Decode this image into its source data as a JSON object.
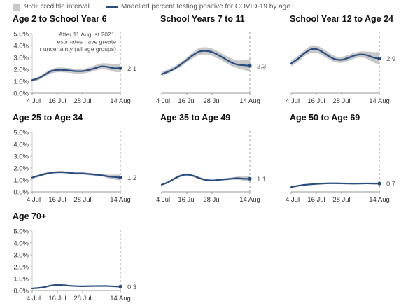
{
  "legend": {
    "ci_label": "95% credible interval",
    "line_label": "Modelled percent testing positive for COVID-19 by age",
    "ci_color": "#c8c8c8",
    "line_color": "#2a4d7f"
  },
  "annotation": "After 11 August 2021, estimates have greater uncertainty (all age groups)",
  "chart_data": [
    {
      "type": "line",
      "title": "Age 2 to School Year 6",
      "x": [
        "4 Jul",
        "7 Jul",
        "10 Jul",
        "13 Jul",
        "16 Jul",
        "19 Jul",
        "22 Jul",
        "25 Jul",
        "28 Jul",
        "31 Jul",
        "3 Aug",
        "6 Aug",
        "9 Aug",
        "12 Aug",
        "14 Aug"
      ],
      "x_ticks": [
        "4 Jul",
        "16 Jul",
        "28 Jul",
        "14 Aug"
      ],
      "y_ticks": [
        "0.0%",
        "1.0%",
        "2.0%",
        "3.0%",
        "4.0%",
        "5.0%"
      ],
      "ylim": [
        0,
        5
      ],
      "values": [
        1.1,
        1.25,
        1.55,
        1.85,
        1.95,
        1.95,
        1.9,
        1.85,
        1.85,
        1.95,
        2.1,
        2.25,
        2.2,
        2.1,
        2.1
      ],
      "lower": [
        1.0,
        1.1,
        1.4,
        1.65,
        1.75,
        1.75,
        1.7,
        1.65,
        1.65,
        1.75,
        1.9,
        2.0,
        1.95,
        1.8,
        1.75
      ],
      "upper": [
        1.25,
        1.4,
        1.7,
        2.0,
        2.15,
        2.15,
        2.1,
        2.05,
        2.05,
        2.15,
        2.35,
        2.5,
        2.5,
        2.45,
        2.5
      ],
      "last_value": "2.1",
      "gridlines": false
    },
    {
      "type": "line",
      "title": "School Years 7 to 11",
      "x": [
        "4 Jul",
        "7 Jul",
        "10 Jul",
        "13 Jul",
        "16 Jul",
        "19 Jul",
        "22 Jul",
        "25 Jul",
        "28 Jul",
        "31 Jul",
        "3 Aug",
        "6 Aug",
        "9 Aug",
        "12 Aug",
        "14 Aug"
      ],
      "x_ticks": [
        "4 Jul",
        "16 Jul",
        "28 Jul",
        "14 Aug"
      ],
      "y_ticks": [],
      "ylim": [
        0,
        5
      ],
      "values": [
        1.6,
        1.8,
        2.05,
        2.4,
        2.8,
        3.2,
        3.5,
        3.55,
        3.45,
        3.2,
        2.9,
        2.6,
        2.4,
        2.35,
        2.3
      ],
      "lower": [
        1.45,
        1.65,
        1.9,
        2.2,
        2.6,
        2.95,
        3.2,
        3.25,
        3.15,
        2.9,
        2.6,
        2.3,
        2.1,
        1.95,
        1.85
      ],
      "upper": [
        1.8,
        2.0,
        2.25,
        2.6,
        3.0,
        3.45,
        3.8,
        3.85,
        3.75,
        3.5,
        3.2,
        2.95,
        2.75,
        2.8,
        2.85
      ],
      "last_value": "2.3",
      "gridlines": false
    },
    {
      "type": "line",
      "title": "School Year 12 to Age 24",
      "x": [
        "4 Jul",
        "7 Jul",
        "10 Jul",
        "13 Jul",
        "16 Jul",
        "19 Jul",
        "22 Jul",
        "25 Jul",
        "28 Jul",
        "31 Jul",
        "3 Aug",
        "6 Aug",
        "9 Aug",
        "12 Aug",
        "14 Aug"
      ],
      "x_ticks": [
        "4 Jul",
        "16 Jul",
        "28 Jul",
        "14 Aug"
      ],
      "y_ticks": [],
      "ylim": [
        0,
        5
      ],
      "values": [
        2.5,
        2.85,
        3.3,
        3.65,
        3.7,
        3.45,
        3.1,
        2.85,
        2.8,
        2.95,
        3.15,
        3.25,
        3.2,
        3.0,
        2.9
      ],
      "lower": [
        2.25,
        2.6,
        3.05,
        3.35,
        3.4,
        3.15,
        2.85,
        2.6,
        2.55,
        2.7,
        2.9,
        3.0,
        2.9,
        2.6,
        2.4
      ],
      "upper": [
        2.75,
        3.1,
        3.55,
        3.95,
        4.0,
        3.75,
        3.4,
        3.1,
        3.05,
        3.2,
        3.4,
        3.5,
        3.5,
        3.45,
        3.45
      ],
      "last_value": "2.9",
      "gridlines": false
    },
    {
      "type": "line",
      "title": "Age 25 to Age 34",
      "x": [
        "4 Jul",
        "7 Jul",
        "10 Jul",
        "13 Jul",
        "16 Jul",
        "19 Jul",
        "22 Jul",
        "25 Jul",
        "28 Jul",
        "31 Jul",
        "3 Aug",
        "6 Aug",
        "9 Aug",
        "12 Aug",
        "14 Aug"
      ],
      "x_ticks": [
        "4 Jul",
        "16 Jul",
        "28 Jul",
        "14 Aug"
      ],
      "y_ticks": [
        "0.0%",
        "1.0%",
        "2.0%",
        "3.0%",
        "4.0%",
        "5.0%"
      ],
      "ylim": [
        0,
        5
      ],
      "values": [
        1.2,
        1.35,
        1.5,
        1.6,
        1.65,
        1.65,
        1.6,
        1.55,
        1.55,
        1.5,
        1.45,
        1.4,
        1.3,
        1.25,
        1.2
      ],
      "lower": [
        1.1,
        1.25,
        1.4,
        1.5,
        1.55,
        1.55,
        1.5,
        1.45,
        1.45,
        1.4,
        1.35,
        1.3,
        1.15,
        1.05,
        0.95
      ],
      "upper": [
        1.3,
        1.45,
        1.6,
        1.7,
        1.75,
        1.75,
        1.7,
        1.65,
        1.65,
        1.6,
        1.55,
        1.5,
        1.45,
        1.45,
        1.45
      ],
      "last_value": "1.2",
      "gridlines": false
    },
    {
      "type": "line",
      "title": "Age 35 to Age 49",
      "x": [
        "4 Jul",
        "7 Jul",
        "10 Jul",
        "13 Jul",
        "16 Jul",
        "19 Jul",
        "22 Jul",
        "25 Jul",
        "28 Jul",
        "31 Jul",
        "3 Aug",
        "6 Aug",
        "9 Aug",
        "12 Aug",
        "14 Aug"
      ],
      "x_ticks": [
        "4 Jul",
        "16 Jul",
        "28 Jul",
        "14 Aug"
      ],
      "y_ticks": [],
      "ylim": [
        0,
        5
      ],
      "values": [
        0.6,
        0.8,
        1.1,
        1.35,
        1.45,
        1.35,
        1.15,
        1.0,
        0.95,
        1.0,
        1.05,
        1.1,
        1.15,
        1.1,
        1.1
      ],
      "lower": [
        0.55,
        0.72,
        1.0,
        1.25,
        1.35,
        1.25,
        1.05,
        0.9,
        0.88,
        0.92,
        0.97,
        1.0,
        1.0,
        0.95,
        0.92
      ],
      "upper": [
        0.68,
        0.88,
        1.2,
        1.45,
        1.55,
        1.45,
        1.25,
        1.1,
        1.05,
        1.08,
        1.15,
        1.2,
        1.28,
        1.28,
        1.3
      ],
      "last_value": "1.1",
      "gridlines": false
    },
    {
      "type": "line",
      "title": "Age 50 to Age 69",
      "x": [
        "4 Jul",
        "7 Jul",
        "10 Jul",
        "13 Jul",
        "16 Jul",
        "19 Jul",
        "22 Jul",
        "25 Jul",
        "28 Jul",
        "31 Jul",
        "3 Aug",
        "6 Aug",
        "9 Aug",
        "12 Aug",
        "14 Aug"
      ],
      "x_ticks": [
        "4 Jul",
        "16 Jul",
        "28 Jul",
        "14 Aug"
      ],
      "y_ticks": [],
      "ylim": [
        0,
        5
      ],
      "values": [
        0.4,
        0.5,
        0.58,
        0.63,
        0.67,
        0.7,
        0.72,
        0.72,
        0.71,
        0.7,
        0.69,
        0.7,
        0.71,
        0.7,
        0.7
      ],
      "lower": [
        0.36,
        0.46,
        0.54,
        0.59,
        0.63,
        0.66,
        0.68,
        0.68,
        0.67,
        0.66,
        0.65,
        0.66,
        0.65,
        0.63,
        0.62
      ],
      "upper": [
        0.44,
        0.54,
        0.62,
        0.67,
        0.71,
        0.74,
        0.76,
        0.76,
        0.75,
        0.74,
        0.73,
        0.74,
        0.77,
        0.78,
        0.79
      ],
      "last_value": "0.7",
      "gridlines": false
    },
    {
      "type": "line",
      "title": "Age 70+",
      "x": [
        "4 Jul",
        "7 Jul",
        "10 Jul",
        "13 Jul",
        "16 Jul",
        "19 Jul",
        "22 Jul",
        "25 Jul",
        "28 Jul",
        "31 Jul",
        "3 Aug",
        "6 Aug",
        "9 Aug",
        "12 Aug",
        "14 Aug"
      ],
      "x_ticks": [
        "4 Jul",
        "16 Jul",
        "28 Jul",
        "14 Aug"
      ],
      "y_ticks": [
        "0.0%",
        "1.0%",
        "2.0%",
        "3.0%",
        "4.0%",
        "5.0%"
      ],
      "ylim": [
        0,
        5
      ],
      "values": [
        0.18,
        0.22,
        0.3,
        0.42,
        0.48,
        0.45,
        0.4,
        0.37,
        0.36,
        0.37,
        0.38,
        0.38,
        0.38,
        0.35,
        0.33
      ],
      "lower": [
        0.15,
        0.19,
        0.26,
        0.38,
        0.44,
        0.41,
        0.36,
        0.33,
        0.32,
        0.33,
        0.34,
        0.34,
        0.33,
        0.3,
        0.28
      ],
      "upper": [
        0.21,
        0.25,
        0.34,
        0.46,
        0.52,
        0.49,
        0.44,
        0.41,
        0.4,
        0.41,
        0.42,
        0.42,
        0.43,
        0.41,
        0.4
      ],
      "last_value": "0.3",
      "gridlines": false
    }
  ]
}
